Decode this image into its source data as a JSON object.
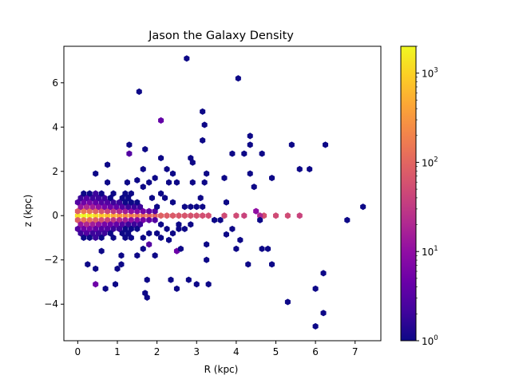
{
  "chart_data": {
    "type": "heatmap",
    "subtype": "hexbin",
    "title": "Jason the Galaxy Density",
    "xlabel": "R (kpc)",
    "ylabel": "z (kpc)",
    "xlim": [
      -0.35,
      7.65
    ],
    "ylim": [
      -5.65,
      7.65
    ],
    "xticks": [
      0,
      1,
      2,
      3,
      4,
      5,
      6,
      7
    ],
    "yticks": [
      -4,
      -2,
      0,
      2,
      4,
      6
    ],
    "colormap": "plasma",
    "color_scale": "log",
    "colorbar": {
      "min": 1,
      "max": 2000,
      "ticks": [
        {
          "value": 1,
          "base": "10",
          "exp": "0"
        },
        {
          "value": 10,
          "base": "10",
          "exp": "1"
        },
        {
          "value": 100,
          "base": "10",
          "exp": "2"
        },
        {
          "value": 1000,
          "base": "10",
          "exp": "3"
        }
      ]
    },
    "gridsize_x": 0.145,
    "cells": [
      [
        0.0,
        0.0,
        1300
      ],
      [
        0.15,
        0.0,
        2000
      ],
      [
        0.3,
        0.0,
        1700
      ],
      [
        0.45,
        0.0,
        1200
      ],
      [
        0.6,
        0.0,
        900
      ],
      [
        0.75,
        0.0,
        700
      ],
      [
        0.9,
        0.0,
        500
      ],
      [
        1.05,
        0.0,
        350
      ],
      [
        1.2,
        0.0,
        250
      ],
      [
        1.35,
        0.0,
        200
      ],
      [
        1.5,
        0.0,
        150
      ],
      [
        1.65,
        0.0,
        130
      ],
      [
        1.8,
        0.0,
        110
      ],
      [
        1.95,
        0.0,
        100
      ],
      [
        2.1,
        0.0,
        90
      ],
      [
        2.25,
        0.0,
        80
      ],
      [
        2.4,
        0.0,
        75
      ],
      [
        2.55,
        0.0,
        70
      ],
      [
        2.7,
        0.0,
        65
      ],
      [
        2.85,
        0.0,
        60
      ],
      [
        3.0,
        0.0,
        60
      ],
      [
        3.15,
        0.0,
        55
      ],
      [
        3.3,
        0.0,
        55
      ],
      [
        3.7,
        0.0,
        50
      ],
      [
        4.0,
        0.0,
        50
      ],
      [
        4.2,
        0.0,
        40
      ],
      [
        4.7,
        0.0,
        60
      ],
      [
        5.0,
        0.0,
        50
      ],
      [
        5.3,
        0.0,
        50
      ],
      [
        5.6,
        0.0,
        40
      ],
      [
        0.0,
        0.2,
        80
      ],
      [
        0.15,
        0.2,
        150
      ],
      [
        0.3,
        0.2,
        120
      ],
      [
        0.45,
        0.2,
        90
      ],
      [
        0.6,
        0.2,
        60
      ],
      [
        0.75,
        0.2,
        40
      ],
      [
        0.9,
        0.2,
        30
      ],
      [
        1.05,
        0.2,
        20
      ],
      [
        1.2,
        0.2,
        15
      ],
      [
        1.35,
        0.2,
        10
      ],
      [
        1.5,
        0.2,
        8
      ],
      [
        1.65,
        0.2,
        6
      ],
      [
        1.8,
        0.2,
        4
      ],
      [
        1.95,
        0.2,
        3
      ],
      [
        0.0,
        -0.2,
        80
      ],
      [
        0.15,
        -0.2,
        150
      ],
      [
        0.3,
        -0.2,
        120
      ],
      [
        0.45,
        -0.2,
        90
      ],
      [
        0.6,
        -0.2,
        60
      ],
      [
        0.75,
        -0.2,
        40
      ],
      [
        0.9,
        -0.2,
        30
      ],
      [
        1.05,
        -0.2,
        20
      ],
      [
        1.2,
        -0.2,
        15
      ],
      [
        1.35,
        -0.2,
        10
      ],
      [
        1.5,
        -0.2,
        8
      ],
      [
        1.65,
        -0.2,
        6
      ],
      [
        1.8,
        -0.2,
        4
      ],
      [
        1.95,
        -0.2,
        3
      ],
      [
        0.075,
        0.4,
        12
      ],
      [
        0.225,
        0.4,
        20
      ],
      [
        0.375,
        0.4,
        15
      ],
      [
        0.525,
        0.4,
        10
      ],
      [
        0.675,
        0.4,
        6
      ],
      [
        0.825,
        0.4,
        5
      ],
      [
        0.975,
        0.4,
        4
      ],
      [
        1.125,
        0.4,
        3
      ],
      [
        1.275,
        0.4,
        2
      ],
      [
        1.425,
        0.4,
        2
      ],
      [
        1.575,
        0.4,
        2
      ],
      [
        2.0,
        0.4,
        1
      ],
      [
        2.7,
        0.4,
        1
      ],
      [
        2.85,
        0.4,
        1
      ],
      [
        3.0,
        0.4,
        1
      ],
      [
        3.15,
        0.4,
        1
      ],
      [
        4.5,
        0.2,
        10
      ],
      [
        4.6,
        0.0,
        20
      ],
      [
        7.2,
        0.4,
        1
      ],
      [
        0.075,
        -0.4,
        12
      ],
      [
        0.225,
        -0.4,
        20
      ],
      [
        0.375,
        -0.4,
        15
      ],
      [
        0.525,
        -0.4,
        10
      ],
      [
        0.675,
        -0.4,
        6
      ],
      [
        0.825,
        -0.4,
        5
      ],
      [
        0.975,
        -0.4,
        4
      ],
      [
        1.125,
        -0.4,
        3
      ],
      [
        1.275,
        -0.4,
        2
      ],
      [
        1.425,
        -0.4,
        2
      ],
      [
        1.575,
        -0.4,
        2
      ],
      [
        2.1,
        -0.4,
        1
      ],
      [
        2.55,
        -0.4,
        1
      ],
      [
        2.85,
        -0.4,
        1
      ],
      [
        3.45,
        -0.2,
        1
      ],
      [
        3.6,
        -0.2,
        1
      ],
      [
        4.6,
        -0.2,
        1
      ],
      [
        6.8,
        -0.2,
        1
      ],
      [
        0.0,
        0.6,
        3
      ],
      [
        0.15,
        0.6,
        5
      ],
      [
        0.3,
        0.6,
        6
      ],
      [
        0.45,
        0.6,
        4
      ],
      [
        0.6,
        0.6,
        3
      ],
      [
        0.75,
        0.6,
        3
      ],
      [
        0.9,
        0.6,
        2
      ],
      [
        1.05,
        0.6,
        2
      ],
      [
        1.2,
        0.6,
        1
      ],
      [
        1.35,
        0.6,
        1
      ],
      [
        1.5,
        0.6,
        1
      ],
      [
        2.4,
        0.6,
        1
      ],
      [
        3.75,
        0.6,
        1
      ],
      [
        0.0,
        -0.6,
        3
      ],
      [
        0.15,
        -0.6,
        5
      ],
      [
        0.3,
        -0.6,
        6
      ],
      [
        0.45,
        -0.6,
        4
      ],
      [
        0.6,
        -0.6,
        3
      ],
      [
        0.75,
        -0.6,
        3
      ],
      [
        0.9,
        -0.6,
        2
      ],
      [
        1.05,
        -0.6,
        2
      ],
      [
        1.2,
        -0.6,
        1
      ],
      [
        1.35,
        -0.6,
        1
      ],
      [
        1.5,
        -0.6,
        1
      ],
      [
        2.25,
        -0.6,
        1
      ],
      [
        2.55,
        -0.6,
        1
      ],
      [
        2.7,
        -0.6,
        1
      ],
      [
        3.9,
        -0.6,
        1
      ],
      [
        0.075,
        0.8,
        2
      ],
      [
        0.225,
        0.8,
        3
      ],
      [
        0.375,
        0.8,
        2
      ],
      [
        0.525,
        0.8,
        2
      ],
      [
        0.675,
        0.8,
        2
      ],
      [
        0.825,
        0.8,
        1
      ],
      [
        1.125,
        0.8,
        1
      ],
      [
        1.275,
        0.8,
        1
      ],
      [
        1.875,
        0.8,
        1
      ],
      [
        2.2,
        0.8,
        1
      ],
      [
        3.1,
        0.8,
        1
      ],
      [
        0.075,
        -0.8,
        2
      ],
      [
        0.225,
        -0.8,
        3
      ],
      [
        0.375,
        -0.8,
        2
      ],
      [
        0.525,
        -0.8,
        2
      ],
      [
        0.675,
        -0.8,
        2
      ],
      [
        0.825,
        -0.8,
        1
      ],
      [
        1.125,
        -0.8,
        1
      ],
      [
        1.275,
        -0.8,
        1
      ],
      [
        1.8,
        -0.8,
        1
      ],
      [
        2.0,
        -0.8,
        1
      ],
      [
        2.4,
        -0.8,
        1
      ],
      [
        0.15,
        1.0,
        1
      ],
      [
        0.3,
        1.0,
        1
      ],
      [
        0.45,
        1.0,
        2
      ],
      [
        0.6,
        1.0,
        1
      ],
      [
        0.9,
        1.0,
        1
      ],
      [
        1.2,
        1.0,
        1
      ],
      [
        1.35,
        1.0,
        1
      ],
      [
        2.1,
        1.0,
        1
      ],
      [
        0.15,
        -1.0,
        1
      ],
      [
        0.3,
        -1.0,
        1
      ],
      [
        0.45,
        -1.0,
        2
      ],
      [
        0.6,
        -1.0,
        1
      ],
      [
        0.9,
        -1.0,
        1
      ],
      [
        1.2,
        -1.0,
        1
      ],
      [
        1.35,
        -1.0,
        1
      ],
      [
        1.65,
        -1.0,
        1
      ],
      [
        2.1,
        -1.0,
        1
      ],
      [
        3.75,
        -0.85,
        1
      ],
      [
        0.45,
        1.9,
        1
      ],
      [
        0.75,
        2.3,
        1
      ],
      [
        1.3,
        2.8,
        3
      ],
      [
        1.3,
        3.2,
        1
      ],
      [
        1.7,
        3.0,
        1
      ],
      [
        1.55,
        5.6,
        1
      ],
      [
        2.1,
        4.3,
        4
      ],
      [
        2.75,
        7.1,
        1
      ],
      [
        3.15,
        4.7,
        1
      ],
      [
        3.2,
        4.1,
        1
      ],
      [
        3.15,
        3.4,
        1
      ],
      [
        4.05,
        6.2,
        1
      ],
      [
        4.35,
        3.6,
        1
      ],
      [
        4.35,
        3.2,
        1
      ],
      [
        4.2,
        2.8,
        1
      ],
      [
        3.9,
        2.8,
        1
      ],
      [
        4.65,
        2.8,
        1
      ],
      [
        5.4,
        3.2,
        1
      ],
      [
        6.25,
        3.2,
        1
      ],
      [
        5.6,
        2.1,
        1
      ],
      [
        5.85,
        2.1,
        1
      ],
      [
        4.9,
        1.7,
        1
      ],
      [
        4.35,
        1.9,
        1
      ],
      [
        4.45,
        1.3,
        1
      ],
      [
        3.7,
        1.7,
        1
      ],
      [
        2.9,
        2.4,
        1
      ],
      [
        2.85,
        2.6,
        1
      ],
      [
        3.25,
        1.9,
        1
      ],
      [
        2.1,
        2.6,
        1
      ],
      [
        2.25,
        2.1,
        1
      ],
      [
        1.65,
        2.1,
        1
      ],
      [
        1.95,
        1.7,
        1
      ],
      [
        2.4,
        1.9,
        1
      ],
      [
        1.5,
        1.6,
        1
      ],
      [
        1.8,
        1.5,
        1
      ],
      [
        2.3,
        1.5,
        1
      ],
      [
        2.5,
        1.5,
        1
      ],
      [
        2.9,
        1.5,
        1
      ],
      [
        3.2,
        1.5,
        1
      ],
      [
        1.65,
        1.3,
        1
      ],
      [
        0.75,
        1.5,
        1
      ],
      [
        1.25,
        1.5,
        1
      ],
      [
        1.5,
        -1.8,
        1
      ],
      [
        1.8,
        -1.3,
        3
      ],
      [
        2.5,
        -1.6,
        5
      ],
      [
        3.25,
        -2.0,
        1
      ],
      [
        0.25,
        -2.2,
        1
      ],
      [
        1.1,
        -2.2,
        1
      ],
      [
        0.45,
        -2.4,
        1
      ],
      [
        1.0,
        -2.4,
        1
      ],
      [
        1.75,
        -2.9,
        1
      ],
      [
        2.35,
        -2.9,
        1
      ],
      [
        0.45,
        -3.1,
        5
      ],
      [
        0.7,
        -3.3,
        1
      ],
      [
        0.95,
        -3.1,
        1
      ],
      [
        1.7,
        -3.5,
        1
      ],
      [
        1.75,
        -3.7,
        1
      ],
      [
        2.5,
        -3.3,
        1
      ],
      [
        2.8,
        -2.9,
        1
      ],
      [
        3.0,
        -3.1,
        1
      ],
      [
        3.3,
        -3.1,
        1
      ],
      [
        4.0,
        -1.5,
        1
      ],
      [
        4.3,
        -2.2,
        1
      ],
      [
        4.65,
        -1.5,
        1
      ],
      [
        4.8,
        -1.5,
        1
      ],
      [
        4.9,
        -2.2,
        1
      ],
      [
        5.3,
        -3.9,
        1
      ],
      [
        6.0,
        -3.3,
        1
      ],
      [
        6.2,
        -2.6,
        1
      ],
      [
        6.2,
        -4.4,
        1
      ],
      [
        6.0,
        -5.0,
        1
      ],
      [
        4.1,
        -1.1,
        1
      ],
      [
        3.25,
        -1.3,
        1
      ],
      [
        1.65,
        -1.5,
        1
      ],
      [
        1.95,
        -1.8,
        1
      ],
      [
        2.3,
        -1.1,
        1
      ],
      [
        2.6,
        -1.5,
        1
      ],
      [
        1.1,
        -1.8,
        1
      ],
      [
        0.6,
        -1.6,
        1
      ]
    ]
  }
}
